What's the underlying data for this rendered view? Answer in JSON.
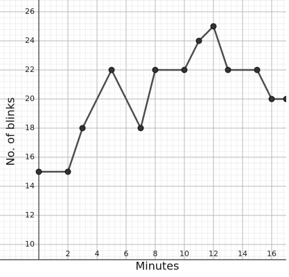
{
  "chart_data": {
    "type": "line",
    "x_label": "Minutes",
    "y_label": "No. of blinks",
    "x": [
      0,
      2,
      3,
      5,
      7,
      8,
      10,
      11,
      12,
      13,
      15,
      16,
      17
    ],
    "series": [
      {
        "color": "#4d4d4d",
        "values": [
          15,
          15,
          18,
          22,
          18,
          22,
          22,
          24,
          25,
          22,
          22,
          20,
          20
        ]
      }
    ],
    "xlim": [
      0,
      17
    ],
    "ylim": [
      9,
      26.8
    ],
    "xticks": [
      2,
      4,
      6,
      8,
      10,
      12,
      14,
      16
    ],
    "yticks": [
      10,
      12,
      14,
      16,
      18,
      20,
      22,
      24,
      26
    ],
    "grid": true
  }
}
